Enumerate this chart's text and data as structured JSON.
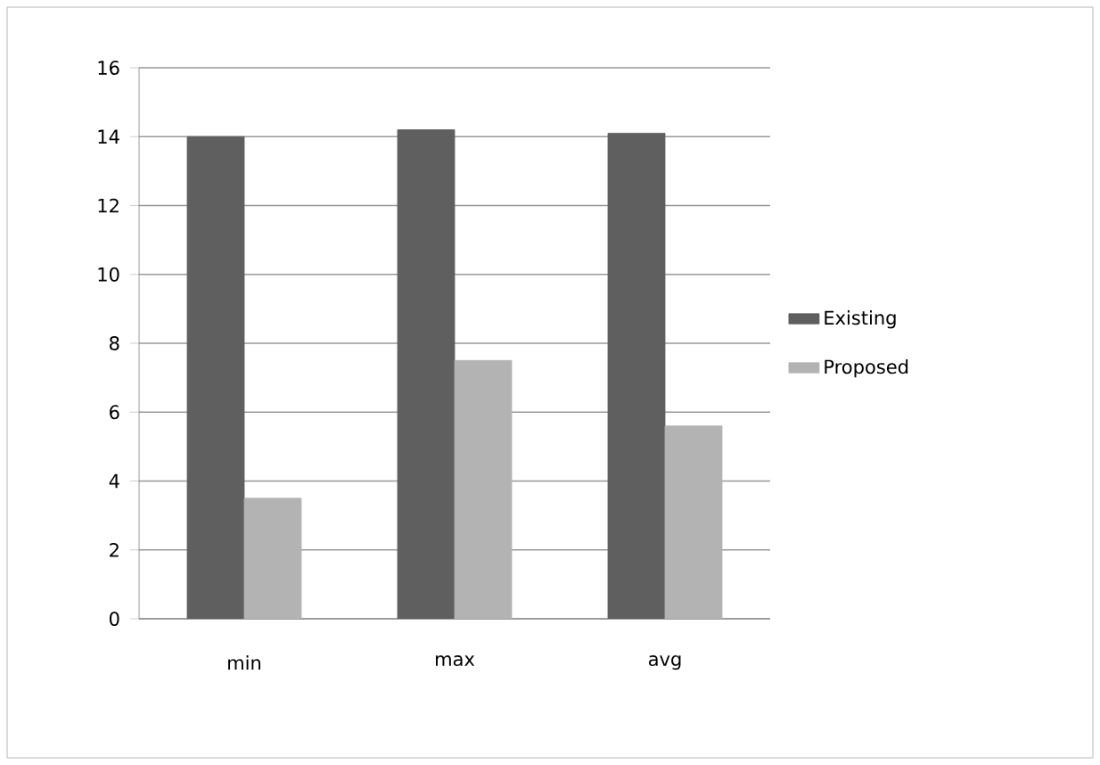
{
  "chart_data": {
    "type": "bar",
    "categories": [
      "min",
      "max",
      "avg"
    ],
    "series": [
      {
        "name": "Existing",
        "color": "#5f5f5f",
        "values": [
          14.0,
          14.2,
          14.1
        ]
      },
      {
        "name": "Proposed",
        "color": "#b3b3b3",
        "values": [
          3.5,
          7.5,
          5.6
        ]
      }
    ],
    "ylim": [
      0,
      16
    ],
    "yticks": [
      0,
      2,
      4,
      6,
      8,
      10,
      12,
      14,
      16
    ],
    "grid": "y",
    "legend": "right"
  }
}
